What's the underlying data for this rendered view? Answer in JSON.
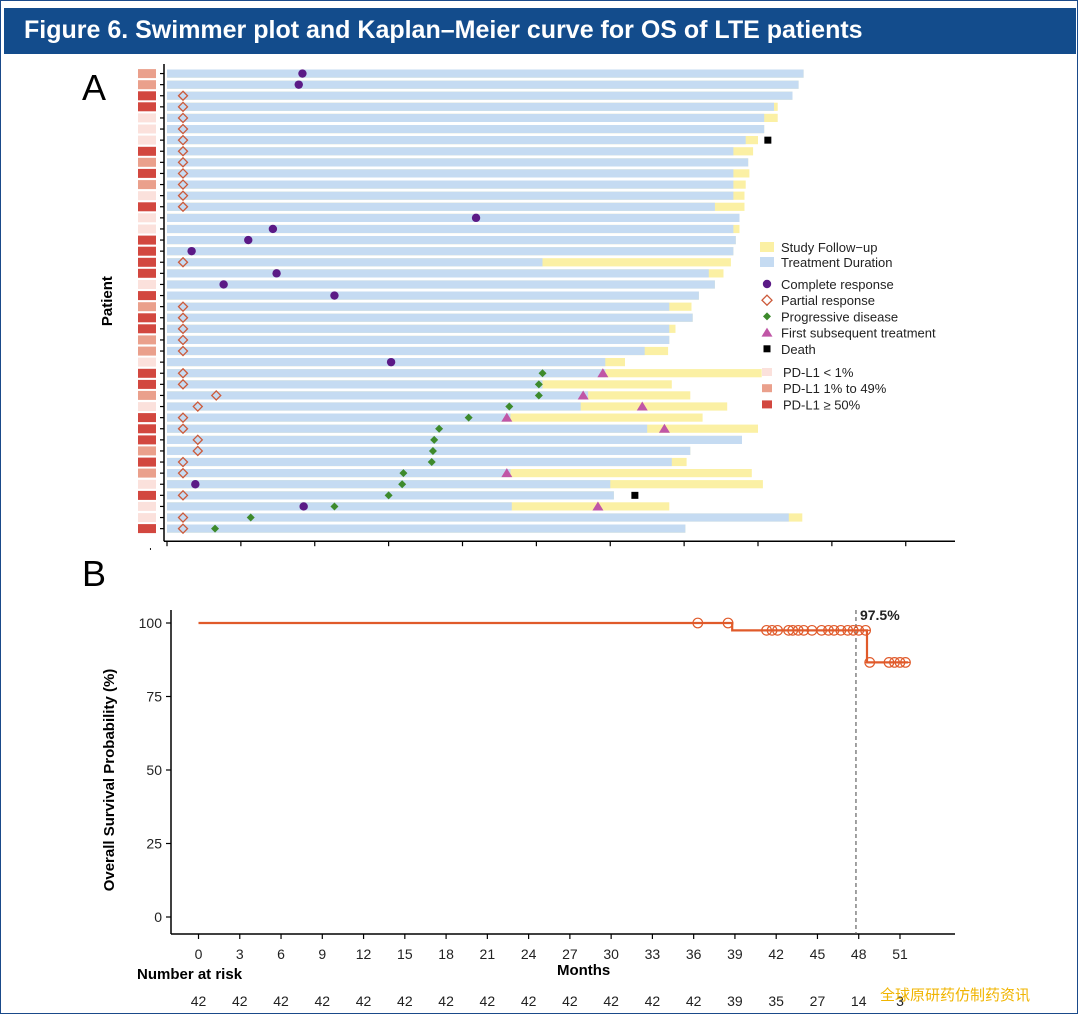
{
  "title": "Figure 6. Swimmer plot and Kaplan–Meier curve for OS of LTE patients",
  "panel_a": "A",
  "panel_b": "B",
  "watermark": "全球原研药仿制药资讯",
  "colors": {
    "title_bg": "#134c8c",
    "treatment": "#c5dbf2",
    "followup": "#fbf0a4",
    "complete_response": "#5b1a86",
    "partial_response": "#cc5a3a",
    "progressive": "#3d8a2c",
    "subsequent": "#c056a6",
    "death": "#000000",
    "pdl1_low": "#fbe1dc",
    "pdl1_mid": "#eaa08c",
    "pdl1_high": "#d2473f",
    "km_line": "#e05a2a"
  },
  "chart_data": [
    {
      "type": "swimmer",
      "xlabel": "Months",
      "ylabel": "Patient",
      "strip_label": "PD-L1",
      "xlim": [
        0,
        64
      ],
      "xticks": [
        0,
        6,
        12,
        18,
        24,
        30,
        36,
        42,
        48,
        54,
        60
      ],
      "legend": {
        "bars": [
          {
            "key": "followup",
            "label": "Study Follow−up"
          },
          {
            "key": "treatment",
            "label": "Treatment Duration"
          }
        ],
        "markers": [
          {
            "key": "cr",
            "label": "Complete response"
          },
          {
            "key": "pr",
            "label": "Partial response"
          },
          {
            "key": "pd",
            "label": "Progressive disease"
          },
          {
            "key": "st",
            "label": "First subsequent treatment"
          },
          {
            "key": "death",
            "label": "Death"
          }
        ],
        "pdl1": [
          {
            "key": "low",
            "label": "PD-L1 < 1%"
          },
          {
            "key": "mid",
            "label": "PD-L1 1% to 49%"
          },
          {
            "key": "high",
            "label": "PD-L1 ≥ 50%"
          }
        ]
      },
      "patients": [
        {
          "pdl1": "mid",
          "treat": 51.7,
          "fu": 51.7,
          "cr": 11.0
        },
        {
          "pdl1": "mid",
          "treat": 51.3,
          "fu": 51.3,
          "cr": 10.7
        },
        {
          "pdl1": "high",
          "treat": 50.8,
          "fu": 50.8,
          "pr": 1.3
        },
        {
          "pdl1": "high",
          "treat": 49.3,
          "fu": 49.6,
          "pr": 1.3
        },
        {
          "pdl1": "low",
          "treat": 48.5,
          "fu": 49.6,
          "pr": 1.3
        },
        {
          "pdl1": "low",
          "treat": 48.5,
          "fu": 48.5,
          "pr": 1.3
        },
        {
          "pdl1": "low",
          "treat": 47.0,
          "fu": 48.0,
          "pr": 1.3,
          "death": 48.8
        },
        {
          "pdl1": "high",
          "treat": 46.0,
          "fu": 47.6,
          "pr": 1.3
        },
        {
          "pdl1": "mid",
          "treat": 47.2,
          "fu": 47.2,
          "pr": 1.3
        },
        {
          "pdl1": "high",
          "treat": 46.0,
          "fu": 47.3,
          "pr": 1.3
        },
        {
          "pdl1": "mid",
          "treat": 46.0,
          "fu": 47.0,
          "pr": 1.3
        },
        {
          "pdl1": "low",
          "treat": 46.0,
          "fu": 46.9,
          "pr": 1.3
        },
        {
          "pdl1": "high",
          "treat": 44.5,
          "fu": 46.9,
          "pr": 1.3
        },
        {
          "pdl1": "low",
          "treat": 46.5,
          "fu": 46.5,
          "cr": 25.1
        },
        {
          "pdl1": "low",
          "treat": 46.0,
          "fu": 46.5,
          "cr": 8.6
        },
        {
          "pdl1": "high",
          "treat": 46.2,
          "fu": 46.2,
          "cr": 6.6
        },
        {
          "pdl1": "high",
          "treat": 46.0,
          "fu": 46.0,
          "cr": 2.0
        },
        {
          "pdl1": "high",
          "treat": 30.5,
          "fu": 45.8,
          "pr": 1.3
        },
        {
          "pdl1": "high",
          "treat": 44.0,
          "fu": 45.2,
          "cr": 8.9
        },
        {
          "pdl1": "low",
          "treat": 44.5,
          "fu": 44.5,
          "cr": 4.6
        },
        {
          "pdl1": "high",
          "treat": 43.2,
          "fu": 43.2,
          "cr": 13.6
        },
        {
          "pdl1": "mid",
          "treat": 40.8,
          "fu": 42.6,
          "pr": 1.3
        },
        {
          "pdl1": "high",
          "treat": 42.7,
          "fu": 42.7,
          "pr": 1.3
        },
        {
          "pdl1": "high",
          "treat": 40.8,
          "fu": 41.3,
          "pr": 1.3
        },
        {
          "pdl1": "mid",
          "treat": 40.8,
          "fu": 40.8,
          "pr": 1.3
        },
        {
          "pdl1": "mid",
          "treat": 38.8,
          "fu": 40.7,
          "pr": 1.3
        },
        {
          "pdl1": "low",
          "treat": 35.6,
          "fu": 37.2,
          "cr": 18.2
        },
        {
          "pdl1": "high",
          "treat": 35.6,
          "fu": 48.3,
          "pr": 1.3,
          "pd": 30.5,
          "st": 35.4
        },
        {
          "pdl1": "high",
          "treat": 30.5,
          "fu": 41.0,
          "pr": 1.3,
          "pd": 30.2
        },
        {
          "pdl1": "mid",
          "treat": 34.2,
          "fu": 42.5,
          "pr": 4.0,
          "pd": 30.2,
          "st": 33.8
        },
        {
          "pdl1": "low",
          "treat": 33.6,
          "fu": 45.5,
          "pr": 2.5,
          "pd": 27.8,
          "st": 38.6
        },
        {
          "pdl1": "high",
          "treat": 27.9,
          "fu": 43.5,
          "pr": 1.3,
          "pd": 24.5,
          "st": 27.6
        },
        {
          "pdl1": "high",
          "treat": 39.0,
          "fu": 48.0,
          "pr": 1.3,
          "pd": 22.1,
          "st": 40.4
        },
        {
          "pdl1": "high",
          "treat": 46.7,
          "fu": 46.7,
          "pr": 2.5,
          "pd": 21.7
        },
        {
          "pdl1": "mid",
          "treat": 42.5,
          "fu": 42.5,
          "pr": 2.5,
          "pd": 21.6
        },
        {
          "pdl1": "high",
          "treat": 41.0,
          "fu": 42.2,
          "pr": 1.3,
          "pd": 21.5
        },
        {
          "pdl1": "mid",
          "treat": 27.9,
          "fu": 47.5,
          "pr": 1.3,
          "pd": 19.2,
          "st": 27.6
        },
        {
          "pdl1": "low",
          "treat": 36.0,
          "fu": 48.4,
          "cr": 2.3,
          "pd": 19.1
        },
        {
          "pdl1": "high",
          "treat": 36.3,
          "fu": 36.3,
          "pr": 1.3,
          "pd": 18.0,
          "death": 38.0
        },
        {
          "pdl1": "low",
          "treat": 28.0,
          "fu": 40.8,
          "cr": 11.1,
          "pd": 13.6,
          "st": 35.0
        },
        {
          "pdl1": "low",
          "treat": 50.5,
          "fu": 51.6,
          "pr": 1.3,
          "pd": 6.8
        },
        {
          "pdl1": "high",
          "treat": 42.1,
          "fu": 42.1,
          "pr": 1.3,
          "pd": 3.9
        }
      ]
    },
    {
      "type": "line",
      "subtype": "kaplan-meier",
      "xlabel": "Months",
      "ylabel": "Overall Survival Probability (%)",
      "xlim": [
        -2,
        55
      ],
      "ylim": [
        0,
        100
      ],
      "xticks": [
        0,
        3,
        6,
        9,
        12,
        15,
        18,
        21,
        24,
        27,
        30,
        33,
        36,
        39,
        42,
        45,
        48,
        51
      ],
      "yticks": [
        0,
        25,
        50,
        75,
        100
      ],
      "steps": [
        [
          0,
          100
        ],
        [
          38.8,
          100
        ],
        [
          38.8,
          97.5
        ],
        [
          48.6,
          97.5
        ],
        [
          48.6,
          86.6
        ],
        [
          51.6,
          86.6
        ]
      ],
      "censored": [
        [
          36.3,
          100
        ],
        [
          38.5,
          100
        ],
        [
          41.3,
          97.5
        ],
        [
          41.7,
          97.5
        ],
        [
          42.1,
          97.5
        ],
        [
          42.9,
          97.5
        ],
        [
          43.2,
          97.5
        ],
        [
          43.6,
          97.5
        ],
        [
          44.0,
          97.5
        ],
        [
          44.6,
          97.5
        ],
        [
          45.3,
          97.5
        ],
        [
          45.8,
          97.5
        ],
        [
          46.2,
          97.5
        ],
        [
          46.7,
          97.5
        ],
        [
          47.2,
          97.5
        ],
        [
          47.6,
          97.5
        ],
        [
          48.0,
          97.5
        ],
        [
          48.5,
          97.5
        ],
        [
          48.8,
          86.6
        ],
        [
          50.2,
          86.6
        ],
        [
          50.6,
          86.6
        ],
        [
          51.0,
          86.6
        ],
        [
          51.4,
          86.6
        ]
      ],
      "reference_x": 47.8,
      "annotation": "97.5%",
      "risk_title": "Number at risk",
      "risk": [
        "42",
        "42",
        "42",
        "42",
        "42",
        "42",
        "42",
        "42",
        "42",
        "42",
        "42",
        "42",
        "42",
        "39",
        "35",
        "27",
        "14",
        "3"
      ]
    }
  ]
}
